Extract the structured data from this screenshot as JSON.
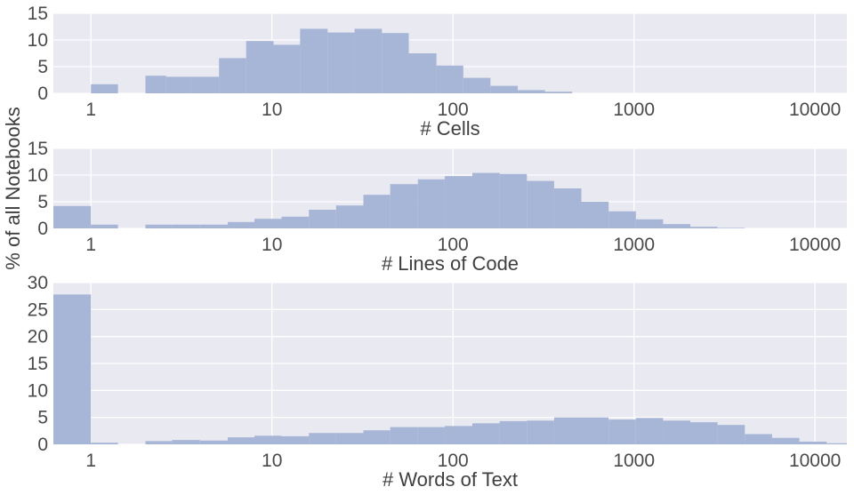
{
  "chart_data": [
    {
      "type": "bar",
      "xlabel": "# Cells",
      "xscale": "log",
      "xlim": [
        0.62,
        15000
      ],
      "ylim": [
        0,
        15
      ],
      "yticks": [
        0,
        5,
        10,
        15
      ],
      "xticks": [
        1,
        10,
        100,
        1000,
        10000
      ],
      "xtick_labels": [
        "1",
        "10",
        "100",
        "1000",
        "10000"
      ],
      "grid": true,
      "bins": [
        {
          "x0": 1.0,
          "x1": 1.41,
          "value": 1.7
        },
        {
          "x0": 1.41,
          "x1": 2.0,
          "value": 0
        },
        {
          "x0": 2.0,
          "x1": 2.6,
          "value": 3.3
        },
        {
          "x0": 2.6,
          "x1": 3.6,
          "value": 3.1
        },
        {
          "x0": 3.6,
          "x1": 5.1,
          "value": 3.1
        },
        {
          "x0": 5.1,
          "x1": 7.2,
          "value": 6.6
        },
        {
          "x0": 7.2,
          "x1": 10.2,
          "value": 9.8
        },
        {
          "x0": 10.2,
          "x1": 14.3,
          "value": 9.1
        },
        {
          "x0": 14.3,
          "x1": 20.3,
          "value": 12.1
        },
        {
          "x0": 20.3,
          "x1": 28.6,
          "value": 11.4
        },
        {
          "x0": 28.6,
          "x1": 40.5,
          "value": 12.1
        },
        {
          "x0": 40.5,
          "x1": 57,
          "value": 11.3
        },
        {
          "x0": 57,
          "x1": 81,
          "value": 7.5
        },
        {
          "x0": 81,
          "x1": 114,
          "value": 5.2
        },
        {
          "x0": 114,
          "x1": 161,
          "value": 2.9
        },
        {
          "x0": 161,
          "x1": 228,
          "value": 1.4
        },
        {
          "x0": 228,
          "x1": 322,
          "value": 0.6
        },
        {
          "x0": 322,
          "x1": 455,
          "value": 0.3
        }
      ]
    },
    {
      "type": "bar",
      "xlabel": "# Lines of Code",
      "xscale": "log",
      "xlim": [
        0.62,
        15000
      ],
      "ylim": [
        0,
        15
      ],
      "yticks": [
        0,
        5,
        10,
        15
      ],
      "xticks": [
        1,
        10,
        100,
        1000,
        10000
      ],
      "xtick_labels": [
        "1",
        "10",
        "100",
        "1000",
        "10000"
      ],
      "grid": true,
      "bins": [
        {
          "x0": 0.62,
          "x1": 1.0,
          "value": 4.2
        },
        {
          "x0": 1.0,
          "x1": 1.41,
          "value": 0.7
        },
        {
          "x0": 1.41,
          "x1": 2.0,
          "value": 0
        },
        {
          "x0": 2.0,
          "x1": 2.8,
          "value": 0.7
        },
        {
          "x0": 2.8,
          "x1": 4.0,
          "value": 0.7
        },
        {
          "x0": 4.0,
          "x1": 5.7,
          "value": 0.7
        },
        {
          "x0": 5.7,
          "x1": 8.0,
          "value": 1.2
        },
        {
          "x0": 8.0,
          "x1": 11.3,
          "value": 1.8
        },
        {
          "x0": 11.3,
          "x1": 16,
          "value": 2.2
        },
        {
          "x0": 16,
          "x1": 22.6,
          "value": 3.5
        },
        {
          "x0": 22.6,
          "x1": 32,
          "value": 4.3
        },
        {
          "x0": 32,
          "x1": 45,
          "value": 6.3
        },
        {
          "x0": 45,
          "x1": 64,
          "value": 8.3
        },
        {
          "x0": 64,
          "x1": 90,
          "value": 9.2
        },
        {
          "x0": 90,
          "x1": 128,
          "value": 9.8
        },
        {
          "x0": 128,
          "x1": 181,
          "value": 10.4
        },
        {
          "x0": 181,
          "x1": 256,
          "value": 10.2
        },
        {
          "x0": 256,
          "x1": 362,
          "value": 8.9
        },
        {
          "x0": 362,
          "x1": 512,
          "value": 7.5
        },
        {
          "x0": 512,
          "x1": 724,
          "value": 5.0
        },
        {
          "x0": 724,
          "x1": 1024,
          "value": 3.2
        },
        {
          "x0": 1024,
          "x1": 1448,
          "value": 1.7
        },
        {
          "x0": 1448,
          "x1": 2048,
          "value": 0.8
        },
        {
          "x0": 2048,
          "x1": 2896,
          "value": 0.3
        },
        {
          "x0": 2896,
          "x1": 4096,
          "value": 0.1
        }
      ]
    },
    {
      "type": "bar",
      "xlabel": "# Words of Text",
      "xscale": "log",
      "xlim": [
        0.62,
        15000
      ],
      "ylim": [
        0,
        30
      ],
      "yticks": [
        0,
        5,
        10,
        15,
        20,
        25,
        30
      ],
      "xticks": [
        1,
        10,
        100,
        1000,
        10000
      ],
      "xtick_labels": [
        "1",
        "10",
        "100",
        "1000",
        "10000"
      ],
      "grid": true,
      "bins": [
        {
          "x0": 0.62,
          "x1": 1.0,
          "value": 27.8
        },
        {
          "x0": 1.0,
          "x1": 1.41,
          "value": 0.3
        },
        {
          "x0": 1.41,
          "x1": 2.0,
          "value": 0
        },
        {
          "x0": 2.0,
          "x1": 2.8,
          "value": 0.6
        },
        {
          "x0": 2.8,
          "x1": 4.0,
          "value": 0.8
        },
        {
          "x0": 4.0,
          "x1": 5.7,
          "value": 0.7
        },
        {
          "x0": 5.7,
          "x1": 8.0,
          "value": 1.3
        },
        {
          "x0": 8.0,
          "x1": 11.3,
          "value": 1.6
        },
        {
          "x0": 11.3,
          "x1": 16,
          "value": 1.5
        },
        {
          "x0": 16,
          "x1": 22.6,
          "value": 2.1
        },
        {
          "x0": 22.6,
          "x1": 32,
          "value": 2.1
        },
        {
          "x0": 32,
          "x1": 45,
          "value": 2.6
        },
        {
          "x0": 45,
          "x1": 64,
          "value": 3.2
        },
        {
          "x0": 64,
          "x1": 90,
          "value": 3.2
        },
        {
          "x0": 90,
          "x1": 128,
          "value": 3.4
        },
        {
          "x0": 128,
          "x1": 181,
          "value": 3.9
        },
        {
          "x0": 181,
          "x1": 256,
          "value": 4.3
        },
        {
          "x0": 256,
          "x1": 362,
          "value": 4.4
        },
        {
          "x0": 362,
          "x1": 512,
          "value": 5.0
        },
        {
          "x0": 512,
          "x1": 724,
          "value": 5.0
        },
        {
          "x0": 724,
          "x1": 1024,
          "value": 4.6
        },
        {
          "x0": 1024,
          "x1": 1448,
          "value": 4.9
        },
        {
          "x0": 1448,
          "x1": 2048,
          "value": 4.4
        },
        {
          "x0": 2048,
          "x1": 2896,
          "value": 4.1
        },
        {
          "x0": 2896,
          "x1": 4096,
          "value": 3.6
        },
        {
          "x0": 4096,
          "x1": 5793,
          "value": 1.9
        },
        {
          "x0": 5793,
          "x1": 8192,
          "value": 1.2
        },
        {
          "x0": 8192,
          "x1": 11585,
          "value": 0.5
        },
        {
          "x0": 11585,
          "x1": 15000,
          "value": 0.2
        }
      ]
    }
  ],
  "figure": {
    "shared_ylabel": "% of all Notebooks"
  },
  "colors": {
    "panel_background": "#e8e9f1",
    "bar_fill": "#a7b5d6",
    "grid": "#ffffff"
  }
}
